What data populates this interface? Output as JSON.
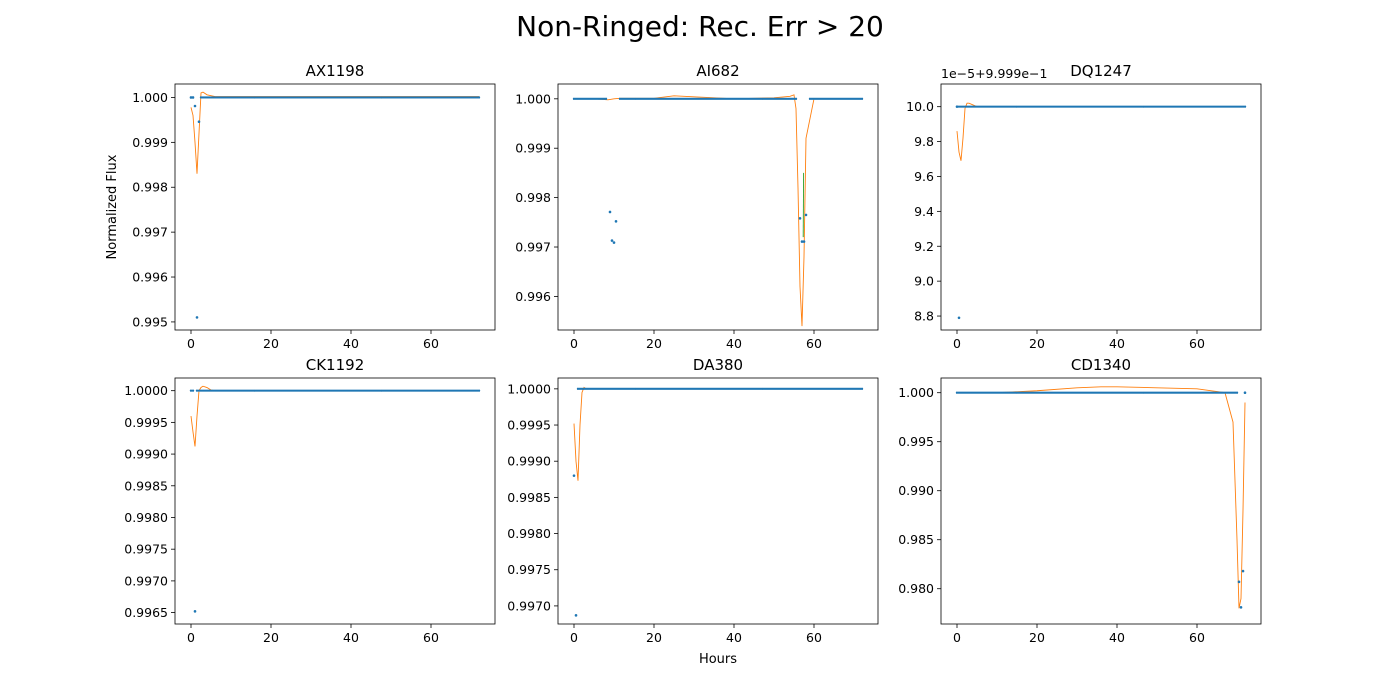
{
  "figure": {
    "suptitle": "Non-Ringed: Rec. Err > 20",
    "xlabel": "Hours",
    "ylabel": "Normalized Flux",
    "colors": {
      "data": "#1f77b4",
      "model": "#ff7f0e",
      "model2": "#2ca02c"
    }
  },
  "chart_data": [
    {
      "type": "scatter",
      "title": "AX1198",
      "xlim": [
        -4,
        76
      ],
      "ylim": [
        0.99482,
        1.0003
      ],
      "xticks": [
        0,
        20,
        40,
        60
      ],
      "xtick_labels": [
        "0",
        "20",
        "40",
        "60"
      ],
      "yticks": [
        0.995,
        0.996,
        0.997,
        0.998,
        0.999,
        1.0
      ],
      "ytick_labels": [
        "0.995",
        "0.996",
        "0.997",
        "0.998",
        "0.999",
        "1.000"
      ],
      "offset_text": "",
      "series": [
        {
          "kind": "baseline",
          "x0": 2.5,
          "x1": 72,
          "y": 1.0,
          "step": 0.5
        },
        {
          "kind": "points",
          "x": [
            0,
            0.5,
            1.0,
            1.5,
            2.0
          ],
          "y": [
            1.0,
            1.0,
            0.99981,
            0.9951,
            0.99946
          ]
        },
        {
          "kind": "model",
          "x": [
            0,
            0.5,
            1.0,
            1.5,
            2.0,
            2.5,
            3.0,
            4.0,
            6.0,
            72
          ],
          "y": [
            0.99978,
            0.9996,
            0.999,
            0.9983,
            0.9992,
            1.0001,
            1.00012,
            1.00006,
            1.00002,
            1.00002
          ]
        }
      ]
    },
    {
      "type": "scatter",
      "title": "AI682",
      "xlim": [
        -4,
        76
      ],
      "ylim": [
        0.99532,
        1.0003
      ],
      "xticks": [
        0,
        20,
        40,
        60
      ],
      "xtick_labels": [
        "0",
        "20",
        "40",
        "60"
      ],
      "yticks": [
        0.996,
        0.997,
        0.998,
        0.999,
        1.0
      ],
      "ytick_labels": [
        "0.996",
        "0.997",
        "0.998",
        "0.999",
        "1.000"
      ],
      "offset_text": "",
      "series": [
        {
          "kind": "baseline",
          "x0": 0,
          "x1": 72,
          "y": 1.0,
          "step": 0.5,
          "skip": [
            [
              8.5,
              11
            ],
            [
              56,
              58.5
            ]
          ]
        },
        {
          "kind": "points",
          "x": [
            9.0,
            9.5,
            10.0,
            10.5,
            56.5,
            57.0,
            57.5,
            58.0
          ],
          "y": [
            0.99771,
            0.99713,
            0.99709,
            0.99752,
            0.99758,
            0.99711,
            0.99711,
            0.99765
          ]
        },
        {
          "kind": "model",
          "x": [
            0,
            5,
            8.5,
            10,
            11.5,
            20,
            25,
            30,
            40,
            50,
            54,
            55,
            55.5,
            56,
            56.5,
            57,
            57.5,
            58,
            60,
            72
          ],
          "y": [
            1.0,
            1.0,
            0.99998,
            1.0,
            1.00001,
            1.00001,
            1.00006,
            1.00004,
            1.0,
            1.00002,
            1.00005,
            1.00008,
            0.9998,
            0.9982,
            0.9962,
            0.9954,
            0.9968,
            0.9992,
            1.0,
            1.0
          ]
        },
        {
          "kind": "model2",
          "x": [
            57.3,
            57.4
          ],
          "y": [
            0.9972,
            0.9985
          ]
        }
      ]
    },
    {
      "type": "scatter",
      "title": "DQ1247",
      "xlim": [
        -4,
        76
      ],
      "ylim": [
        8.72,
        10.13
      ],
      "xticks": [
        0,
        20,
        40,
        60
      ],
      "xtick_labels": [
        "0",
        "20",
        "40",
        "60"
      ],
      "yticks": [
        8.8,
        9.0,
        9.2,
        9.4,
        9.6,
        9.8,
        10.0
      ],
      "ytick_labels": [
        "8.8",
        "9.0",
        "9.2",
        "9.4",
        "9.6",
        "9.8",
        "10.0"
      ],
      "offset_text": "1e−5+9.999e−1",
      "series": [
        {
          "kind": "baseline",
          "x0": 0.5,
          "x1": 72,
          "y": 10.0,
          "step": 0.5
        },
        {
          "kind": "points",
          "x": [
            0,
            0.5
          ],
          "y": [
            10.0,
            8.79
          ]
        },
        {
          "kind": "model",
          "x": [
            0,
            0.5,
            1.0,
            1.5,
            2.0,
            2.5,
            3.0,
            4.0,
            5.0,
            6.0,
            72
          ],
          "y": [
            9.86,
            9.74,
            9.69,
            9.82,
            9.99,
            10.02,
            10.02,
            10.01,
            10.0,
            10.0,
            10.0
          ]
        }
      ]
    },
    {
      "type": "scatter",
      "title": "CK1192",
      "xlim": [
        -4,
        76
      ],
      "ylim": [
        0.99632,
        1.0002
      ],
      "xticks": [
        0,
        20,
        40,
        60
      ],
      "xtick_labels": [
        "0",
        "20",
        "40",
        "60"
      ],
      "yticks": [
        0.9965,
        0.997,
        0.9975,
        0.998,
        0.9985,
        0.999,
        0.9995,
        1.0
      ],
      "ytick_labels": [
        "0.9965",
        "0.9970",
        "0.9975",
        "0.9980",
        "0.9985",
        "0.9990",
        "0.9995",
        "1.0000"
      ],
      "offset_text": "",
      "series": [
        {
          "kind": "baseline",
          "x0": 0,
          "x1": 72,
          "y": 1.0,
          "step": 0.5,
          "skip": [
            [
              0.8,
              1.3
            ]
          ]
        },
        {
          "kind": "points",
          "x": [
            1.0
          ],
          "y": [
            0.99652
          ]
        },
        {
          "kind": "model",
          "x": [
            0,
            0.5,
            1.0,
            1.5,
            2.0,
            2.5,
            3.0,
            4.0,
            5.0,
            6.0,
            72
          ],
          "y": [
            0.9996,
            0.99935,
            0.99912,
            0.9996,
            1.0,
            1.00005,
            1.00007,
            1.00005,
            1.00001,
            1.0,
            1.0
          ]
        }
      ]
    },
    {
      "type": "scatter",
      "title": "DA380",
      "xlim": [
        -4,
        76
      ],
      "ylim": [
        0.99675,
        1.00015
      ],
      "xticks": [
        0,
        20,
        40,
        60
      ],
      "xtick_labels": [
        "0",
        "20",
        "40",
        "60"
      ],
      "yticks": [
        0.997,
        0.9975,
        0.998,
        0.9985,
        0.999,
        0.9995,
        1.0
      ],
      "ytick_labels": [
        "0.9970",
        "0.9975",
        "0.9980",
        "0.9985",
        "0.9990",
        "0.9995",
        "1.0000"
      ],
      "offset_text": "",
      "series": [
        {
          "kind": "baseline",
          "x0": 1.0,
          "x1": 72,
          "y": 1.0,
          "step": 0.5
        },
        {
          "kind": "points",
          "x": [
            0,
            0.5
          ],
          "y": [
            0.9988,
            0.99687
          ]
        },
        {
          "kind": "model",
          "x": [
            0,
            0.5,
            1.0,
            1.5,
            2.0,
            2.5,
            3.0,
            72
          ],
          "y": [
            0.99952,
            0.999,
            0.99873,
            0.9995,
            0.99995,
            1.00002,
            1.0,
            1.0
          ]
        }
      ]
    },
    {
      "type": "scatter",
      "title": "CD1340",
      "xlim": [
        -4,
        76
      ],
      "ylim": [
        0.9764,
        1.0015
      ],
      "xticks": [
        0,
        20,
        40,
        60
      ],
      "xtick_labels": [
        "0",
        "20",
        "40",
        "60"
      ],
      "yticks": [
        0.98,
        0.985,
        0.99,
        0.995,
        1.0
      ],
      "ytick_labels": [
        "0.980",
        "0.985",
        "0.990",
        "0.995",
        "1.000"
      ],
      "offset_text": "",
      "series": [
        {
          "kind": "baseline",
          "x0": 0,
          "x1": 70,
          "y": 1.0,
          "step": 0.5
        },
        {
          "kind": "points",
          "x": [
            70.5,
            71.0,
            71.5,
            72.0
          ],
          "y": [
            0.9807,
            0.9781,
            0.9818,
            1.0
          ]
        },
        {
          "kind": "model",
          "x": [
            0,
            10,
            20,
            30,
            36,
            40,
            50,
            60,
            67,
            69,
            70,
            70.5,
            71,
            71.5,
            72
          ],
          "y": [
            1.0,
            1.0,
            1.0002,
            1.0005,
            1.0006,
            1.0006,
            1.0005,
            1.0004,
            1.0,
            0.997,
            0.985,
            0.978,
            0.979,
            0.988,
            0.999
          ]
        }
      ]
    }
  ]
}
